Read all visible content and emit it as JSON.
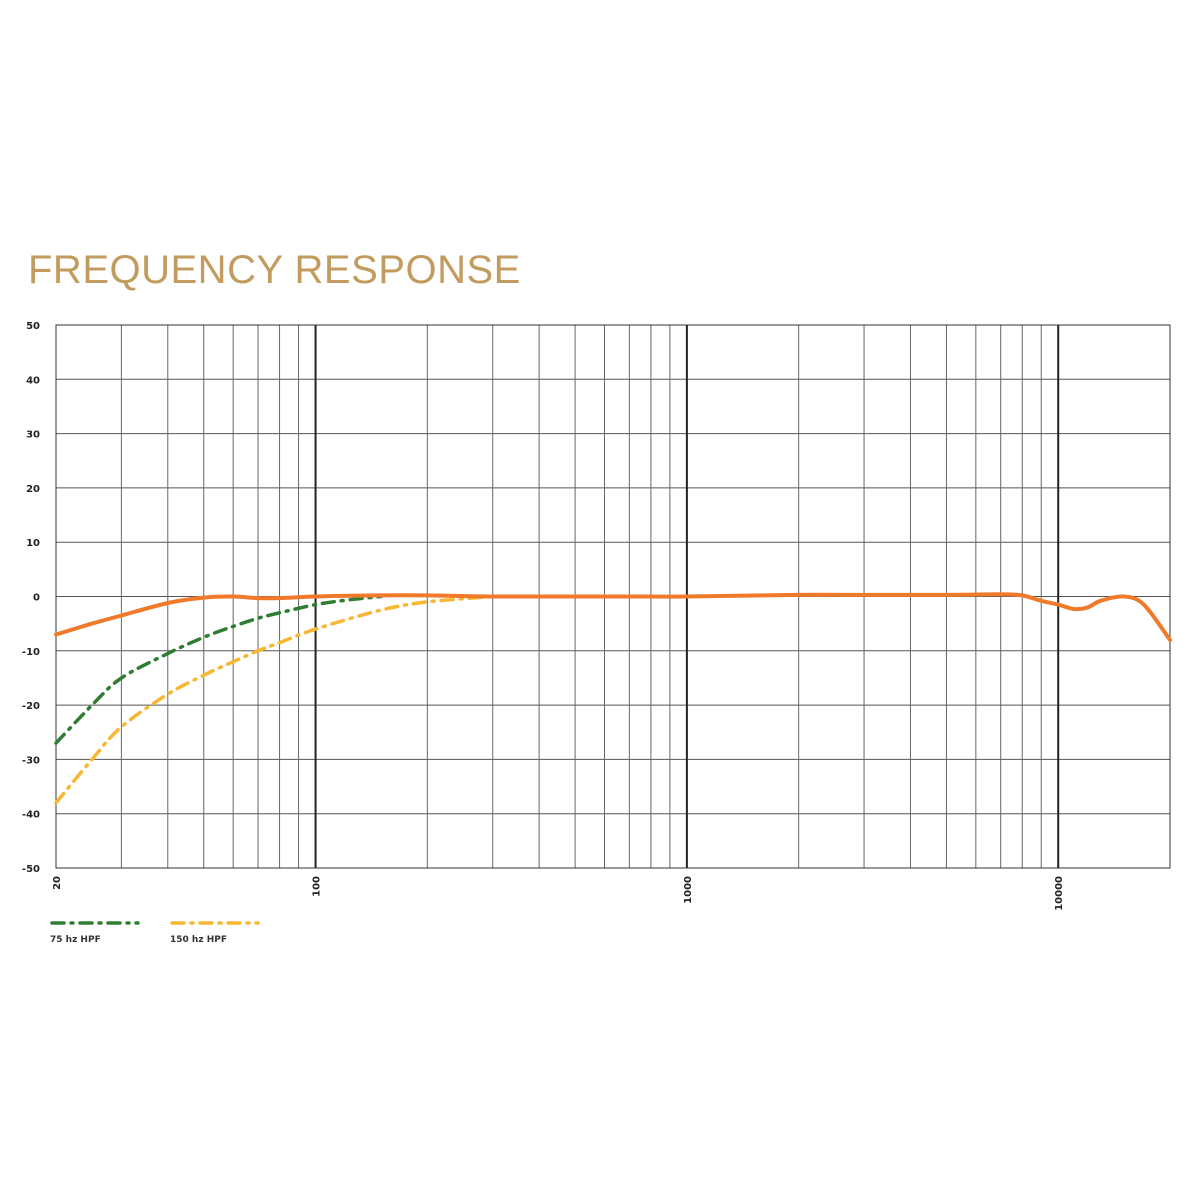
{
  "chart_data": {
    "type": "line",
    "title": "FREQUENCY RESPONSE",
    "xlabel": "",
    "ylabel": "",
    "x_scale": "log",
    "xlim": [
      20,
      20000
    ],
    "ylim": [
      -50,
      50
    ],
    "grid": true,
    "legend_position": "bottom-left",
    "y_ticks": [
      50,
      40,
      30,
      20,
      10,
      0,
      -10,
      -20,
      -30,
      -40,
      -50
    ],
    "x_ticks": [
      20,
      100,
      1000,
      10000
    ],
    "x_tick_labels": [
      "20",
      "100",
      "1000",
      "10000"
    ],
    "series": [
      {
        "color": "#f07a2a",
        "style": "solid",
        "x": [
          20,
          25,
          30,
          40,
          50,
          60,
          70,
          80,
          100,
          150,
          200,
          300,
          500,
          800,
          1000,
          2000,
          3000,
          5000,
          7000,
          8000,
          9000,
          10000,
          11000,
          12000,
          13000,
          15000,
          17000,
          20000
        ],
        "y": [
          -7,
          -5,
          -3.5,
          -1.2,
          -0.2,
          0,
          -0.3,
          -0.3,
          0,
          0.2,
          0.2,
          0,
          0,
          0,
          0,
          0.3,
          0.3,
          0.3,
          0.4,
          0.2,
          -0.8,
          -1.5,
          -2.3,
          -2,
          -0.8,
          0,
          -1.5,
          -8
        ]
      },
      {
        "name": "75 hz HPF",
        "color": "#2e7d32",
        "style": "dashdot",
        "x": [
          20,
          25,
          30,
          40,
          50,
          60,
          70,
          80,
          100,
          120,
          150
        ],
        "y": [
          -27,
          -20,
          -15,
          -10.5,
          -7.5,
          -5.5,
          -4,
          -3,
          -1.5,
          -0.7,
          0
        ]
      },
      {
        "name": "150 hz HPF",
        "color": "#f7b733",
        "style": "dashdot",
        "x": [
          20,
          25,
          30,
          40,
          50,
          60,
          70,
          80,
          100,
          150,
          200,
          300
        ],
        "y": [
          -38,
          -30,
          -24,
          -18,
          -14.5,
          -12,
          -10,
          -8.5,
          -6,
          -2.5,
          -1,
          0
        ]
      }
    ]
  }
}
